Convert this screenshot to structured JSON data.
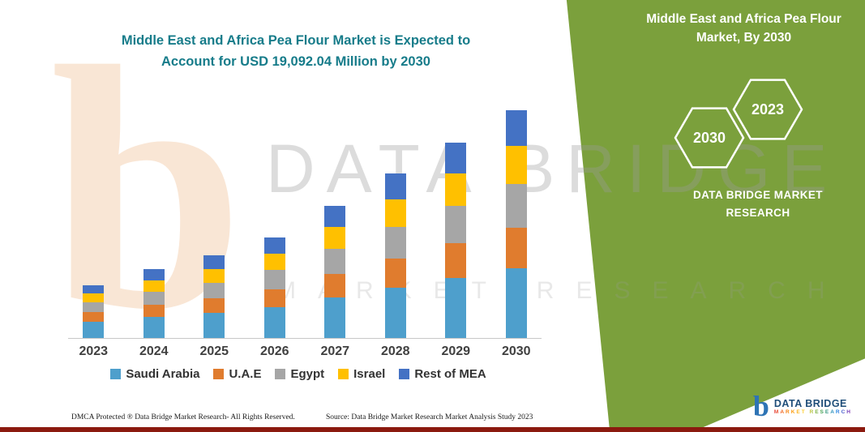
{
  "title": {
    "main": "Middle East and Africa Pea Flour Market is Expected to Account for USD 19,092.04 Million by 2030"
  },
  "side_panel": {
    "title": "Middle East and Africa Pea Flour Market, By 2030",
    "hexagon_front": "2030",
    "hexagon_back": "2023",
    "brand": "DATA BRIDGE MARKET RESEARCH",
    "bg_color": "#7BA03C"
  },
  "watermark": {
    "big_letter": "b",
    "line1": "DATA BRIDGE",
    "line2": "MARKET RESEARCH"
  },
  "chart_data": {
    "type": "bar",
    "stacked": true,
    "title": "Middle East and Africa Pea Flour Market is Expected to Account for USD 19,092.04 Million by 2030",
    "xlabel": "",
    "ylabel": "",
    "y_axis_visible": false,
    "grid": false,
    "legend_position": "bottom",
    "value_unit": "USD Million (values estimated from bar heights; 2030 total shown as USD 19,092.04 Million)",
    "total_2030": "USD 19,092.04 Million",
    "categories": [
      "2023",
      "2024",
      "2025",
      "2026",
      "2027",
      "2028",
      "2029",
      "2030"
    ],
    "series": [
      {
        "name": "Saudi Arabia",
        "color": "#4E9FCC",
        "values": [
          1360,
          1768,
          2108,
          2584,
          3400,
          4216,
          5032,
          5848
        ]
      },
      {
        "name": "U.A.E",
        "color": "#E07C2E",
        "values": [
          816,
          1020,
          1224,
          1496,
          1972,
          2448,
          2924,
          3400
        ]
      },
      {
        "name": "Egypt",
        "color": "#A6A6A6",
        "values": [
          816,
          1088,
          1292,
          1632,
          2108,
          2652,
          3128,
          3672
        ]
      },
      {
        "name": "Israel",
        "color": "#FFC000",
        "values": [
          748,
          952,
          1156,
          1360,
          1836,
          2312,
          2720,
          3196
        ]
      },
      {
        "name": "Rest of MEA",
        "color": "#4472C4",
        "values": [
          680,
          952,
          1156,
          1360,
          1768,
          2176,
          2584,
          2976
        ]
      }
    ]
  },
  "footer": {
    "dmca": "DMCA Protected ® Data Bridge Market Research-  All Rights Reserved.",
    "source": "Source: Data Bridge Market Research  Market Analysis Study 2023"
  },
  "logo": {
    "b": "b",
    "name": "DATA BRIDGE",
    "sub": "MARKET RESEARCH"
  },
  "colors": {
    "panel_green": "#7BA03C",
    "title_teal": "#177C8A",
    "bottom_maroon": "#8B1A0F",
    "axis_gray": "#c8c8c8"
  }
}
